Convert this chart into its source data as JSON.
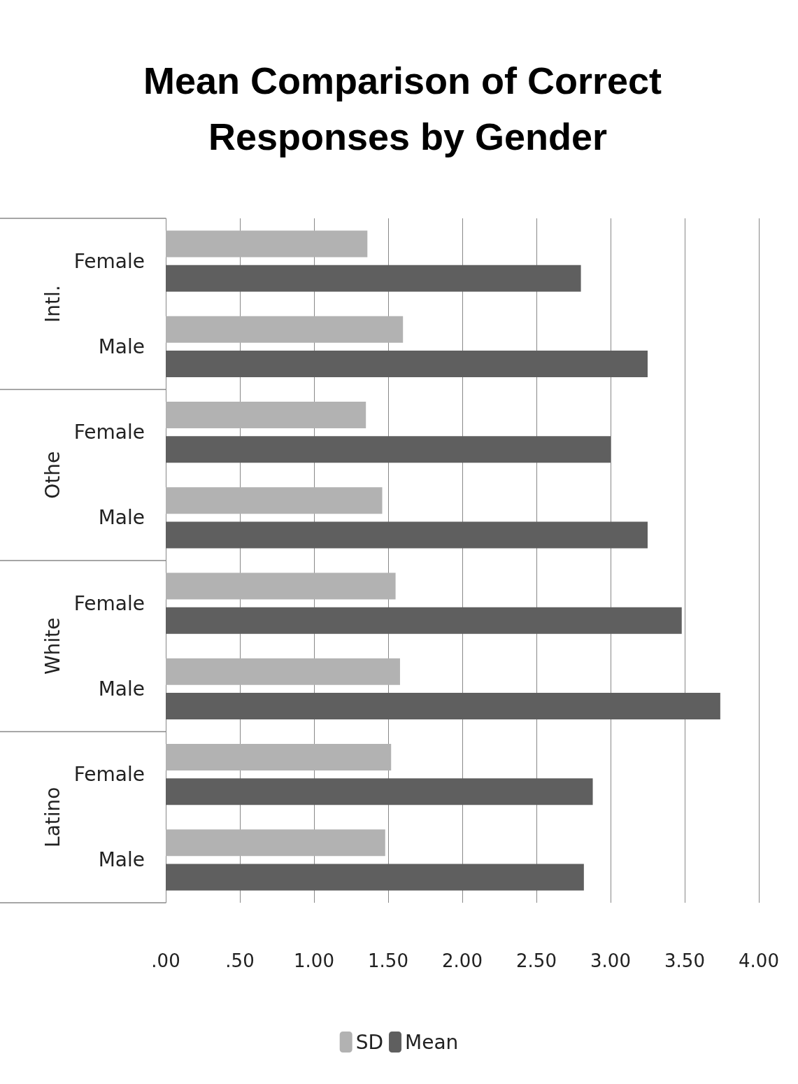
{
  "chart_data": {
    "type": "bar",
    "orientation": "horizontal",
    "title": "Mean Comparison of Correct Responses by Gender",
    "categories": [
      "Female",
      "Male",
      "Female",
      "Male",
      "Female",
      "Male",
      "Female",
      "Male"
    ],
    "series": [
      {
        "name": "SD",
        "color": "#b2b2b2",
        "values": [
          1.36,
          1.6,
          1.35,
          1.46,
          1.55,
          1.58,
          1.52,
          1.48
        ]
      },
      {
        "name": "Mean",
        "color": "#5f5f5f",
        "values": [
          2.8,
          3.25,
          3.0,
          3.25,
          3.48,
          3.74,
          2.88,
          2.82
        ]
      }
    ],
    "annotations": [
      "Intl.",
      "Othe",
      "White",
      "Latino"
    ],
    "xlim": [
      0,
      4
    ],
    "xticks": [
      {
        "value": 0,
        "label": ".00"
      },
      {
        "value": 0.5,
        "label": ".50"
      },
      {
        "value": 1,
        "label": "1.00"
      },
      {
        "value": 1.5,
        "label": "1.50"
      },
      {
        "value": 2,
        "label": "2.00"
      },
      {
        "value": 2.5,
        "label": "2.50"
      },
      {
        "value": 3,
        "label": "3.00"
      },
      {
        "value": 3.5,
        "label": "3.50"
      },
      {
        "value": 4,
        "label": "4.00"
      }
    ],
    "grid": "x",
    "legend": "bottom"
  }
}
